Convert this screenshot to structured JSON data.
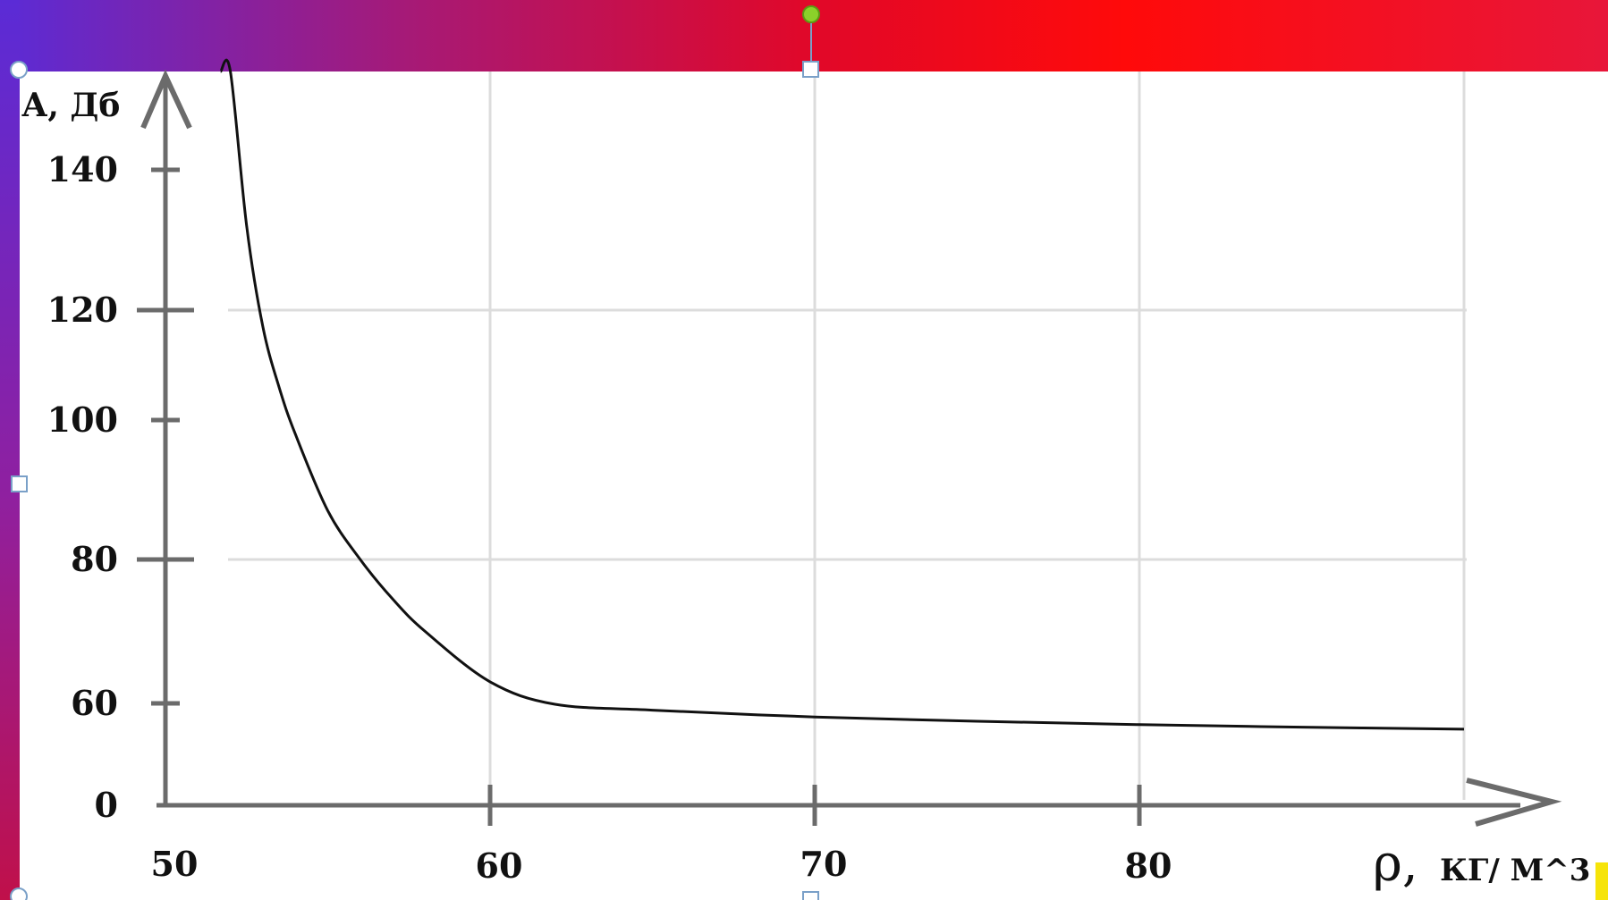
{
  "chart_data": {
    "type": "line",
    "xlabel_symbol": "ρ,",
    "xlabel_unit": "КГ/ М^3",
    "ylabel": "А, Дб",
    "x_ticks": [
      "50",
      "60",
      "70",
      "80"
    ],
    "y_ticks": [
      "0",
      "60",
      "80",
      "100",
      "120",
      "140"
    ],
    "xlim": [
      50,
      90
    ],
    "series": [
      {
        "x": [
          51.7,
          52.0,
          52.5,
          53.0,
          53.5,
          54.0,
          55.0,
          56.0,
          57.0,
          58.0,
          60.0,
          62.0,
          65.0,
          70.0,
          75.0,
          80.0,
          85.0,
          90.0
        ],
        "y": [
          180,
          158,
          132,
          117,
          106,
          98,
          87,
          80,
          74.5,
          70,
          63,
          59.5,
          56,
          52,
          49.5,
          47.5,
          46,
          44.8
        ]
      }
    ]
  },
  "colors": {
    "band_left": "#5b2bd6",
    "band_mid": "#e0082a",
    "band_right": "#ff0a0a",
    "curve": "#111111",
    "axis": "#6b6b6b",
    "grid": "#dcdcdc"
  }
}
